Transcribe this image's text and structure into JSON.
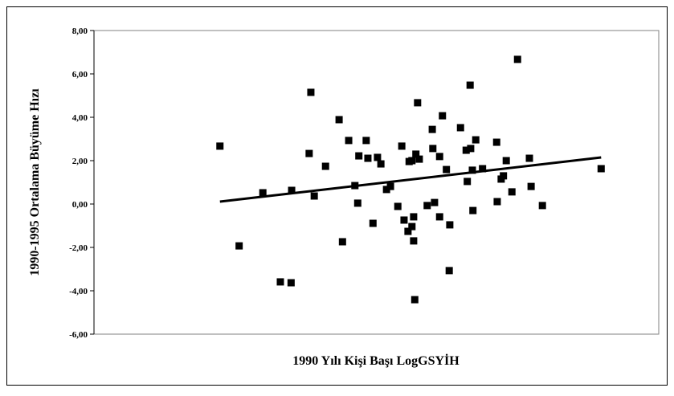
{
  "chart_data": {
    "type": "scatter",
    "y_label": "1990-1995 Ortalama Büyüme Hızı",
    "x_label": "1990 Yılı Kişi Başı LogGSYİH",
    "xlim": [
      0,
      100
    ],
    "ylim": [
      -6,
      8
    ],
    "yticks": [
      {
        "value": -6,
        "label": "-6,00"
      },
      {
        "value": -4,
        "label": "-4,00"
      },
      {
        "value": -2,
        "label": "-2,00"
      },
      {
        "value": 0,
        "label": "0,00"
      },
      {
        "value": 2,
        "label": "2,00"
      },
      {
        "value": 4,
        "label": "4,00"
      },
      {
        "value": 6,
        "label": "6,00"
      },
      {
        "value": 8,
        "label": "8,00"
      }
    ],
    "color": "#000000",
    "x": [
      22.3,
      25.7,
      29.9,
      33.0,
      34.9,
      35.0,
      38.1,
      38.4,
      39.0,
      41.0,
      43.4,
      44.0,
      45.1,
      46.2,
      46.7,
      46.9,
      48.2,
      48.5,
      49.4,
      50.2,
      50.8,
      51.8,
      52.5,
      53.8,
      54.5,
      54.9,
      55.6,
      55.8,
      56.3,
      56.6,
      56.6,
      56.8,
      56.3,
      57.0,
      57.3,
      57.6,
      59.0,
      59.9,
      60.0,
      60.3,
      61.2,
      61.2,
      61.7,
      62.4,
      62.9,
      63.0,
      64.9,
      65.9,
      66.1,
      66.6,
      66.7,
      67.0,
      67.1,
      67.6,
      68.8,
      71.3,
      71.4,
      72.1,
      72.5,
      73.0,
      74.0,
      75.0,
      77.1,
      77.4,
      79.4,
      89.8
    ],
    "values": [
      2.67,
      -1.93,
      0.52,
      -3.59,
      -3.63,
      0.63,
      2.33,
      5.15,
      0.37,
      1.74,
      3.89,
      -1.74,
      2.93,
      0.85,
      0.04,
      2.22,
      2.93,
      2.11,
      -0.89,
      2.15,
      1.85,
      0.67,
      0.81,
      -0.11,
      2.67,
      -0.74,
      -1.26,
      1.96,
      -1.04,
      -0.59,
      -1.7,
      -4.41,
      2.0,
      2.3,
      4.67,
      2.07,
      -0.07,
      3.44,
      2.56,
      0.07,
      -0.59,
      2.19,
      4.07,
      1.59,
      -3.07,
      -0.96,
      3.52,
      2.48,
      1.04,
      5.48,
      2.56,
      1.56,
      -0.3,
      2.96,
      1.63,
      2.85,
      0.11,
      1.15,
      1.3,
      2.0,
      0.56,
      6.67,
      2.11,
      0.81,
      -0.07,
      1.63
    ],
    "trendline": {
      "x": [
        22.3,
        89.8
      ],
      "values": [
        0.11,
        2.15
      ]
    }
  }
}
